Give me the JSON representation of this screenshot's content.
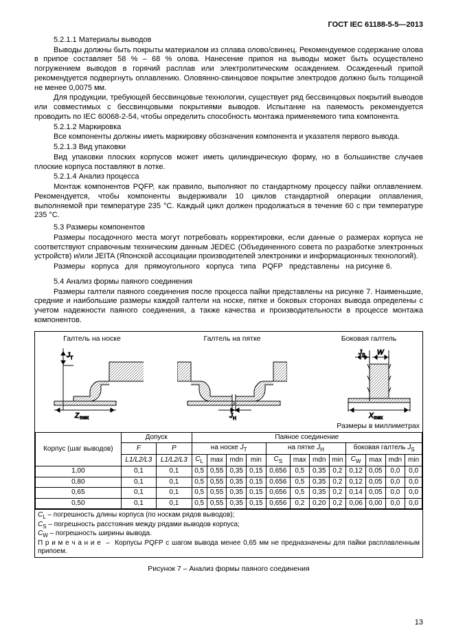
{
  "header": "ГОСТ IEC 61188-5-5—2013",
  "paragraphs": [
    {
      "cls": "indent",
      "text": "5.2.1.1 Материалы выводов"
    },
    {
      "cls": "indent",
      "text": "Выводы должны быть покрыты материалом из сплава олово/свинец. Рекомендуемое содержание олова в припое составляет 58 % – 68 % олова. Нанесение припоя на выводы может быть осуществлено погружением выводов в горячий расплав или электролитическим осаждением. Осажденный припой рекомендуется подвергнуть оплавлению. Оловянно-свинцовое покрытие электродов должно быть толщиной не менее 0,0075 мм."
    },
    {
      "cls": "indent",
      "text": "Для продукции, требующей бессвинцовые технологии, существует ряд бессвинцовых покрытий выводов или совместимых с бессвинцовыми покрытиями выводов. Испытание на паяемость рекомендуется проводить по IEC 60068-2-54, чтобы определить способность монтажа применяемого типа компонента."
    },
    {
      "cls": "indent",
      "text": "5.2.1.2 Маркировка"
    },
    {
      "cls": "indent",
      "text": "Все компоненты должны иметь маркировку обозначения компонента и указателя первого вывода."
    },
    {
      "cls": "indent",
      "text": "5.2.1.3 Вид упаковки"
    },
    {
      "cls": "indent",
      "text": "Вид упаковки плоских корпусов может иметь цилиндрическую форму, но в большинстве случаев плоские корпуса поставляют в лотке."
    },
    {
      "cls": "indent",
      "text": "5.2.1.4 Анализ процесса"
    },
    {
      "cls": "indent",
      "text": "Монтаж компонентов PQFP, как правило, выполняют по стандартному процессу пайки оплавлением. Рекомендуется, чтобы компоненты выдерживали 10 циклов стандартной операции оплавления, выполняемой при температуре 235 °C. Каждый цикл должен продолжаться в течение 60 с при температуре 235 °C."
    },
    {
      "cls": "section-title",
      "text": "5.3 Размеры компонентов"
    },
    {
      "cls": "indent",
      "text": "Размеры посадочного места могут потребовать корректировки, если данные о размерах корпуса не соответствуют справочным техническим данным JEDEC (Объединенного совета по разработке электронных устройств) и/или JEITA (Японской ассоциации производителей электроники и информационных технологий)."
    },
    {
      "cls": "indent",
      "text": "Размеры   корпуса   для   прямоугольного   корпуса   типа   PQFP   представлены   на рисунке 6."
    },
    {
      "cls": "section-title",
      "text": "5.4 Анализ формы паяного соединения",
      "style": "margin-top:8px"
    },
    {
      "cls": "indent",
      "text": "Размеры галтели паяного соединения после процесса пайки представлены на рисунке 7. Наименьшие, средние и наибольшие размеры каждой галтели на носке, пятке и боковых сторонах вывода определены с учетом надежности паяного соединения, а также качества и производительности в процессе монтажа компонентов."
    }
  ],
  "diagram_labels": {
    "d1": "Галтель на носке",
    "d2": "Галтель на пятке",
    "d3": "Боковая галтель"
  },
  "units_label": "Размеры в миллиметрах",
  "table": {
    "headers": {
      "corpus": "Корпус (шаг выводов)",
      "dopusk": "Допуск",
      "soed": "Паяное соединение",
      "F": "F",
      "P": "P",
      "jt_label": "на носке",
      "jh_label": "на пятке",
      "js_label": "боковая галтель",
      "L": "L1/L2/L3",
      "CL": "C",
      "CS": "C",
      "CW": "C",
      "max": "max",
      "mdn": "mdn",
      "min": "min"
    },
    "rows": [
      [
        "1,00",
        "0,1",
        "0,1",
        "0,5",
        "0,55",
        "0,35",
        "0,15",
        "0,656",
        "0,5",
        "0,35",
        "0,2",
        "0,12",
        "0,05",
        "0,0",
        "0,0"
      ],
      [
        "0,80",
        "0,1",
        "0,1",
        "0,5",
        "0,55",
        "0,35",
        "0,15",
        "0,656",
        "0,5",
        "0,35",
        "0,2",
        "0,12",
        "0,05",
        "0,0",
        "0,0"
      ],
      [
        "0,65",
        "0,1",
        "0,1",
        "0,5",
        "0,55",
        "0,35",
        "0,15",
        "0,656",
        "0,5",
        "0,35",
        "0,2",
        "0,14",
        "0,05",
        "0,0",
        "0,0"
      ],
      [
        "0,50",
        "0,1",
        "0,1",
        "0,5",
        "0,55",
        "0,35",
        "0,15",
        "0,656",
        "0,2",
        "0,20",
        "0,2",
        "0,06",
        "0,00",
        "0,0",
        "0,0"
      ]
    ]
  },
  "notes": [
    "C_L – погрешность длины корпуса (по носкам рядов выводов);",
    "C_S – погрешность расстояния между рядами выводов корпуса;",
    "C_W – погрешность ширины вывода.",
    "П р и м е ч а н и е  –  Корпусы PQFP с шагом вывода менее 0,65 мм не предназначены для пайки расплавленным припоем."
  ],
  "caption": "Рисунок 7 –  Анализ формы паяного соединения",
  "page_num": "13"
}
